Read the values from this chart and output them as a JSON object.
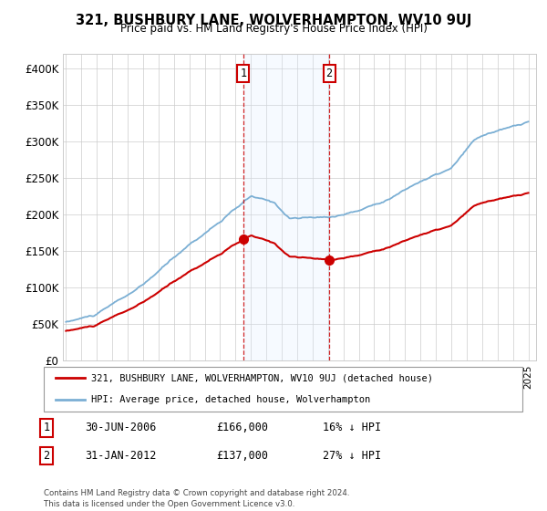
{
  "title": "321, BUSHBURY LANE, WOLVERHAMPTON, WV10 9UJ",
  "subtitle": "Price paid vs. HM Land Registry's House Price Index (HPI)",
  "ylim": [
    0,
    420000
  ],
  "yticks": [
    0,
    50000,
    100000,
    150000,
    200000,
    250000,
    300000,
    350000,
    400000
  ],
  "ytick_labels": [
    "£0",
    "£50K",
    "£100K",
    "£150K",
    "£200K",
    "£250K",
    "£300K",
    "£350K",
    "£400K"
  ],
  "legend_line1": "321, BUSHBURY LANE, WOLVERHAMPTON, WV10 9UJ (detached house)",
  "legend_line2": "HPI: Average price, detached house, Wolverhampton",
  "transaction1_date": "30-JUN-2006",
  "transaction1_price": "£166,000",
  "transaction1_hpi": "16% ↓ HPI",
  "transaction2_date": "31-JAN-2012",
  "transaction2_price": "£137,000",
  "transaction2_hpi": "27% ↓ HPI",
  "footer": "Contains HM Land Registry data © Crown copyright and database right 2024.\nThis data is licensed under the Open Government Licence v3.0.",
  "hpi_color": "#7bafd4",
  "price_color": "#cc0000",
  "shade_color": "#ddeeff",
  "vline_color": "#cc0000",
  "transaction1_x": 2006.5,
  "transaction2_x": 2012.08,
  "transaction1_y": 166000,
  "transaction2_y": 137000,
  "shade_x1": 2006.5,
  "shade_x2": 2012.08,
  "xlim_start": 1994.8,
  "xlim_end": 2025.5
}
